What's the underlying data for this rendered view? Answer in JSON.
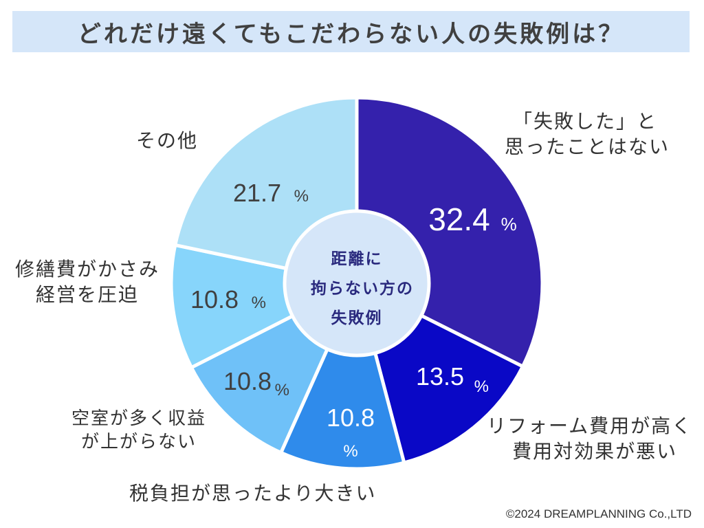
{
  "title": "どれだけ遠くてもこだわらない人の失敗例は？",
  "center_label": [
    "距離に",
    "拘らない方の",
    "失敗例"
  ],
  "credit": "©2024 DREAMPLANNING Co.,LTD",
  "chart_data": {
    "type": "pie",
    "donut": true,
    "unit": "%",
    "slices": [
      {
        "label": "「失敗した」と思ったことはない",
        "label_lines": [
          "「失敗した」と",
          "思ったことはない"
        ],
        "value": 32.4,
        "value_text": "32.4",
        "color": "#3421ac",
        "text_color": "#ffffff"
      },
      {
        "label": "リフォーム費用が高く費用対効果が悪い",
        "label_lines": [
          "リフォーム費用が高く",
          "費用対効果が悪い"
        ],
        "value": 13.5,
        "value_text": "13.5",
        "color": "#0a08c6",
        "text_color": "#ffffff"
      },
      {
        "label": "税負担が思ったより大きい",
        "label_lines": [
          "税負担が思ったより大きい"
        ],
        "value": 10.8,
        "value_text": "10.8",
        "color": "#2f8beb",
        "text_color": "#ffffff"
      },
      {
        "label": "空室が多く収益が上がらない",
        "label_lines": [
          "空室が多く収益",
          "が上がらない"
        ],
        "value": 10.8,
        "value_text": "10.8",
        "color": "#6fc1f8",
        "text_color": "#404040"
      },
      {
        "label": "修繕費がかさみ経営を圧迫",
        "label_lines": [
          "修繕費がかさみ",
          "経営を圧迫"
        ],
        "value": 10.8,
        "value_text": "10.8",
        "color": "#87d5fb",
        "text_color": "#404040"
      },
      {
        "label": "その他",
        "label_lines": [
          "その他"
        ],
        "value": 21.7,
        "value_text": "21.7",
        "color": "#ade0f7",
        "text_color": "#404040"
      }
    ]
  }
}
